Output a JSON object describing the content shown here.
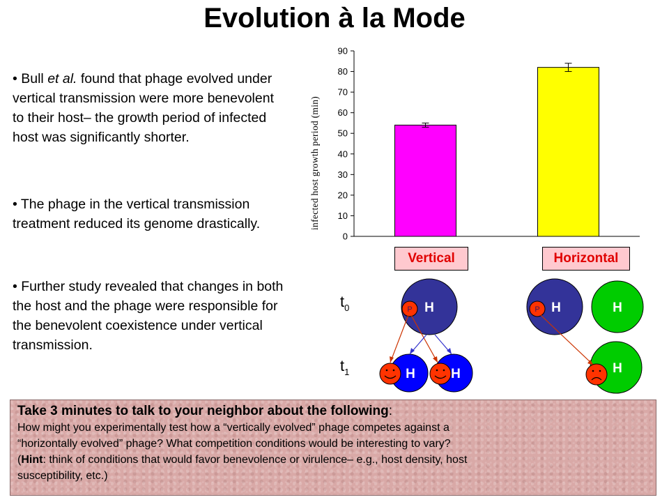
{
  "slide": {
    "title": "Evolution à la Mode",
    "bullets": {
      "b1": {
        "mark": "• ",
        "pre": "Bull ",
        "italic": "et al.",
        "post": " found that phage evolved under vertical transmission were more benevolent to their host– the growth period of infected host was significantly shorter."
      },
      "b2": {
        "text": "• The phage in the vertical transmission treatment reduced its genome drastically."
      },
      "b3": {
        "text": "• Further study revealed that changes in both the host and the phage were responsible for the benevolent coexistence under vertical transmission."
      }
    }
  },
  "chart_data": {
    "type": "bar",
    "categories": [
      "Vertical",
      "Horizontal"
    ],
    "values": [
      54,
      82
    ],
    "errors": [
      1,
      2
    ],
    "ylabel": "infected host growth period (min)",
    "xlabel": "",
    "ylim": [
      0,
      90
    ],
    "yticks": [
      "0",
      "10",
      "20",
      "30",
      "40",
      "50",
      "60",
      "70",
      "80",
      "90"
    ],
    "bar_colors": [
      "#ff00ff",
      "#ffff00"
    ],
    "grid": false
  },
  "diagram": {
    "time_labels": {
      "t0_main": "t",
      "t0_sub": "0",
      "t1_main": "t",
      "t1_sub": "1"
    },
    "host_label": "H",
    "phage_label": "P",
    "colors": {
      "host_parent": "#333399",
      "host_child": "#0000ff",
      "host_green": "#00cc00",
      "phage": "#ff3300",
      "arrow_red": "#cc3300",
      "arrow_blue": "#3333cc"
    },
    "icons": [
      "smiley-face-icon",
      "frowning-face-icon",
      "phage-icon"
    ]
  },
  "discussion": {
    "head_pre": "Take 3 minutes to talk to your neighbor about the following",
    "head_colon": ":",
    "body_line1": "How might you experimentally test how a “vertically evolved” phage competes against a",
    "body_line2": "“horizontally evolved” phage?  What competition conditions would be interesting to vary?",
    "body_line3_pre": "(",
    "hint_label": "Hint",
    "body_line3_post": ": think of conditions that would favor benevolence or virulence– e.g., host density, host",
    "body_line4": "susceptibility, etc.)"
  }
}
